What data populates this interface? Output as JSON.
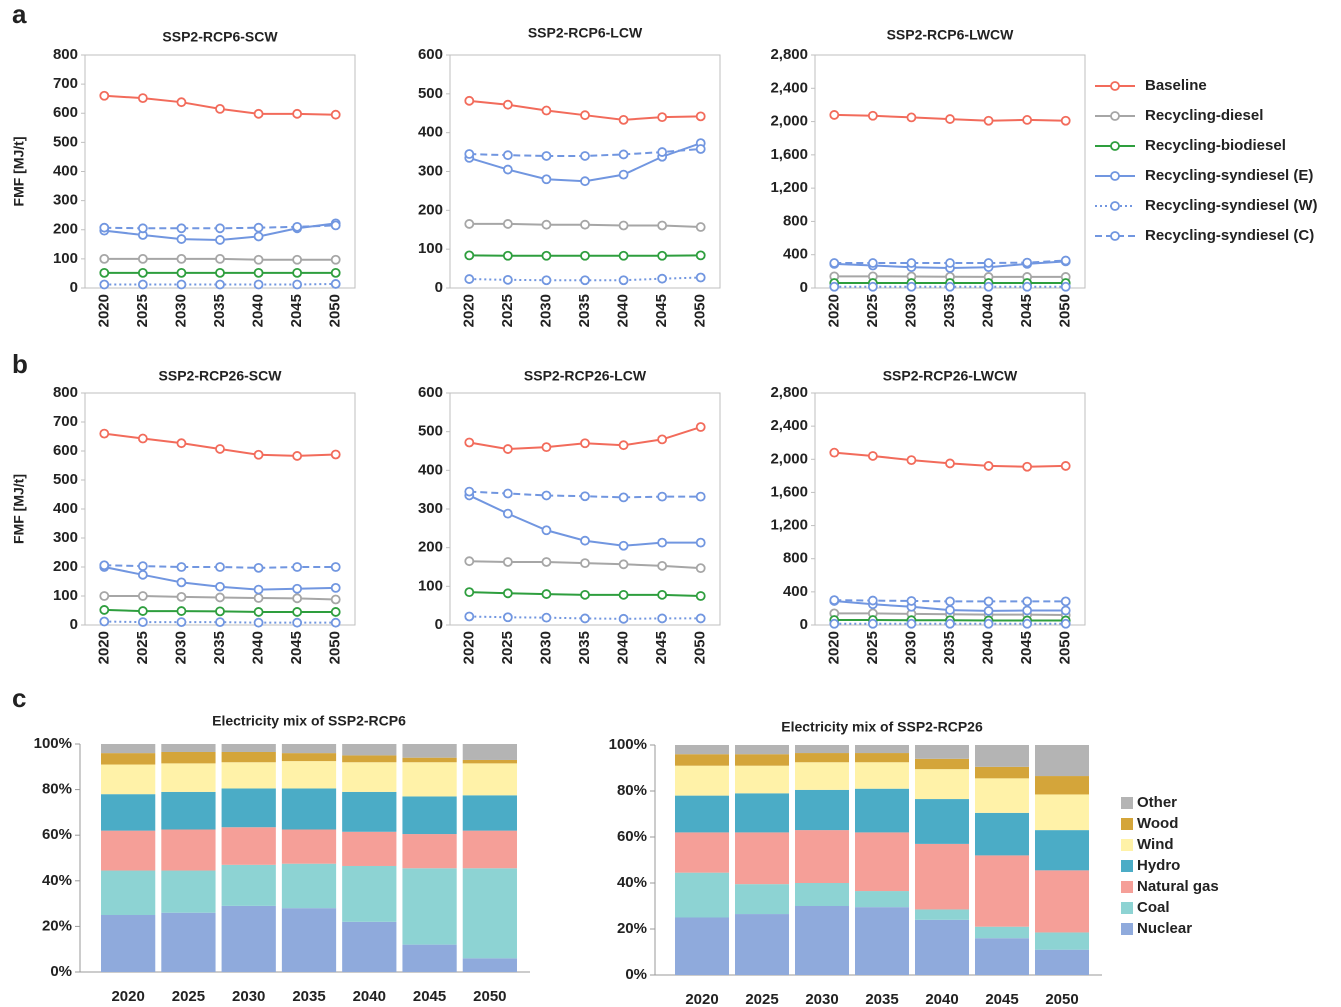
{
  "panel_labels": [
    "a",
    "b",
    "c"
  ],
  "chart_data": [
    {
      "type": "line",
      "title": "SSP2-RCP6-SCW",
      "ylabel": "FMF [MJ/t]",
      "categories": [
        "2020",
        "2025",
        "2030",
        "2035",
        "2040",
        "2045",
        "2050"
      ],
      "ylim": [
        0,
        800
      ],
      "yticks": [
        0,
        100,
        200,
        300,
        400,
        500,
        600,
        700,
        800
      ],
      "grid": false,
      "frame": true,
      "series": [
        {
          "name": "Baseline",
          "color": "#f26b5b",
          "style": "solid",
          "values": [
            660,
            652,
            638,
            615,
            598,
            598,
            595
          ]
        },
        {
          "name": "Recycling-diesel",
          "color": "#a6a6a6",
          "style": "solid",
          "values": [
            100,
            100,
            100,
            100,
            97,
            97,
            97
          ]
        },
        {
          "name": "Recycling-biodiesel",
          "color": "#2e9e3e",
          "style": "solid",
          "values": [
            52,
            52,
            52,
            52,
            52,
            52,
            52
          ]
        },
        {
          "name": "Recycling-syndiesel (E)",
          "color": "#7196e0",
          "style": "solid",
          "values": [
            197,
            182,
            168,
            165,
            177,
            205,
            222
          ]
        },
        {
          "name": "Recycling-syndiesel (W)",
          "color": "#7196e0",
          "style": "dotted",
          "values": [
            12,
            12,
            12,
            12,
            12,
            12,
            14
          ]
        },
        {
          "name": "Recycling-syndiesel (C)",
          "color": "#7196e0",
          "style": "dashed",
          "values": [
            207,
            205,
            205,
            205,
            207,
            210,
            215
          ]
        }
      ]
    },
    {
      "type": "line",
      "title": "SSP2-RCP6-LCW",
      "categories": [
        "2020",
        "2025",
        "2030",
        "2035",
        "2040",
        "2045",
        "2050"
      ],
      "ylim": [
        0,
        600
      ],
      "yticks": [
        0,
        100,
        200,
        300,
        400,
        500,
        600
      ],
      "grid": false,
      "frame": true,
      "series": [
        {
          "name": "Baseline",
          "color": "#f26b5b",
          "style": "solid",
          "values": [
            482,
            472,
            457,
            445,
            433,
            440,
            442
          ]
        },
        {
          "name": "Recycling-diesel",
          "color": "#a6a6a6",
          "style": "solid",
          "values": [
            165,
            165,
            163,
            163,
            161,
            161,
            157
          ]
        },
        {
          "name": "Recycling-biodiesel",
          "color": "#2e9e3e",
          "style": "solid",
          "values": [
            84,
            83,
            83,
            83,
            83,
            83,
            84
          ]
        },
        {
          "name": "Recycling-syndiesel (E)",
          "color": "#7196e0",
          "style": "solid",
          "values": [
            335,
            305,
            280,
            275,
            292,
            338,
            373
          ]
        },
        {
          "name": "Recycling-syndiesel (W)",
          "color": "#7196e0",
          "style": "dotted",
          "values": [
            23,
            21,
            20,
            20,
            20,
            24,
            27
          ]
        },
        {
          "name": "Recycling-syndiesel (C)",
          "color": "#7196e0",
          "style": "dashed",
          "values": [
            345,
            342,
            340,
            340,
            344,
            350,
            358
          ]
        }
      ]
    },
    {
      "type": "line",
      "title": "SSP2-RCP6-LWCW",
      "categories": [
        "2020",
        "2025",
        "2030",
        "2035",
        "2040",
        "2045",
        "2050"
      ],
      "ylim": [
        0,
        2800
      ],
      "yticks": [
        0,
        400,
        800,
        {
          "value": 1200,
          "label": "1,200"
        },
        {
          "value": 1600,
          "label": "1,600"
        },
        {
          "value": 2000,
          "label": "2,000"
        },
        {
          "value": 2400,
          "label": "2,400"
        },
        {
          "value": 2800,
          "label": "2,800"
        }
      ],
      "grid": false,
      "frame": true,
      "series": [
        {
          "name": "Baseline",
          "color": "#f26b5b",
          "style": "solid",
          "values": [
            2080,
            2070,
            2050,
            2030,
            2010,
            2020,
            2010
          ]
        },
        {
          "name": "Recycling-diesel",
          "color": "#a6a6a6",
          "style": "solid",
          "values": [
            140,
            140,
            138,
            135,
            133,
            133,
            133
          ]
        },
        {
          "name": "Recycling-biodiesel",
          "color": "#2e9e3e",
          "style": "solid",
          "values": [
            60,
            60,
            60,
            60,
            60,
            60,
            60
          ]
        },
        {
          "name": "Recycling-syndiesel (E)",
          "color": "#7196e0",
          "style": "solid",
          "values": [
            290,
            270,
            250,
            240,
            250,
            290,
            320
          ]
        },
        {
          "name": "Recycling-syndiesel (W)",
          "color": "#7196e0",
          "style": "dotted",
          "values": [
            15,
            15,
            15,
            15,
            15,
            15,
            15
          ]
        },
        {
          "name": "Recycling-syndiesel (C)",
          "color": "#7196e0",
          "style": "dashed",
          "values": [
            300,
            300,
            300,
            300,
            300,
            305,
            330
          ]
        }
      ]
    },
    {
      "type": "line",
      "title": "SSP2-RCP26-SCW",
      "ylabel": "FMF [MJ/t]",
      "categories": [
        "2020",
        "2025",
        "2030",
        "2035",
        "2040",
        "2045",
        "2050"
      ],
      "ylim": [
        0,
        800
      ],
      "yticks": [
        0,
        100,
        200,
        300,
        400,
        500,
        600,
        700,
        800
      ],
      "grid": false,
      "frame": true,
      "series": [
        {
          "name": "Baseline",
          "color": "#f26b5b",
          "style": "solid",
          "values": [
            660,
            643,
            627,
            607,
            587,
            583,
            588
          ]
        },
        {
          "name": "Recycling-diesel",
          "color": "#a6a6a6",
          "style": "solid",
          "values": [
            100,
            100,
            97,
            95,
            93,
            92,
            88
          ]
        },
        {
          "name": "Recycling-biodiesel",
          "color": "#2e9e3e",
          "style": "solid",
          "values": [
            52,
            48,
            48,
            47,
            45,
            45,
            45
          ]
        },
        {
          "name": "Recycling-syndiesel (E)",
          "color": "#7196e0",
          "style": "solid",
          "values": [
            200,
            173,
            147,
            132,
            122,
            125,
            128
          ]
        },
        {
          "name": "Recycling-syndiesel (W)",
          "color": "#7196e0",
          "style": "dotted",
          "values": [
            12,
            10,
            10,
            10,
            8,
            8,
            8
          ]
        },
        {
          "name": "Recycling-syndiesel (C)",
          "color": "#7196e0",
          "style": "dashed",
          "values": [
            206,
            203,
            200,
            200,
            197,
            200,
            200
          ]
        }
      ]
    },
    {
      "type": "line",
      "title": "SSP2-RCP26-LCW",
      "categories": [
        "2020",
        "2025",
        "2030",
        "2035",
        "2040",
        "2045",
        "2050"
      ],
      "ylim": [
        0,
        600
      ],
      "yticks": [
        0,
        100,
        200,
        300,
        400,
        500,
        600
      ],
      "grid": false,
      "frame": true,
      "series": [
        {
          "name": "Baseline",
          "color": "#f26b5b",
          "style": "solid",
          "values": [
            472,
            455,
            460,
            470,
            465,
            480,
            512
          ]
        },
        {
          "name": "Recycling-diesel",
          "color": "#a6a6a6",
          "style": "solid",
          "values": [
            165,
            163,
            163,
            160,
            157,
            153,
            147
          ]
        },
        {
          "name": "Recycling-biodiesel",
          "color": "#2e9e3e",
          "style": "solid",
          "values": [
            85,
            82,
            80,
            78,
            78,
            78,
            75
          ]
        },
        {
          "name": "Recycling-syndiesel (E)",
          "color": "#7196e0",
          "style": "solid",
          "values": [
            335,
            288,
            245,
            218,
            205,
            213,
            213
          ]
        },
        {
          "name": "Recycling-syndiesel (W)",
          "color": "#7196e0",
          "style": "dotted",
          "values": [
            22,
            20,
            19,
            17,
            16,
            17,
            17
          ]
        },
        {
          "name": "Recycling-syndiesel (C)",
          "color": "#7196e0",
          "style": "dashed",
          "values": [
            345,
            340,
            335,
            333,
            330,
            332,
            332
          ]
        }
      ]
    },
    {
      "type": "line",
      "title": "SSP2-RCP26-LWCW",
      "categories": [
        "2020",
        "2025",
        "2030",
        "2035",
        "2040",
        "2045",
        "2050"
      ],
      "ylim": [
        0,
        2800
      ],
      "yticks": [
        0,
        400,
        800,
        {
          "value": 1200,
          "label": "1,200"
        },
        {
          "value": 1600,
          "label": "1,600"
        },
        {
          "value": 2000,
          "label": "2,000"
        },
        {
          "value": 2400,
          "label": "2,400"
        },
        {
          "value": 2800,
          "label": "2,800"
        }
      ],
      "grid": false,
      "frame": true,
      "series": [
        {
          "name": "Baseline",
          "color": "#f26b5b",
          "style": "solid",
          "values": [
            2080,
            2040,
            1990,
            1950,
            1920,
            1910,
            1920
          ]
        },
        {
          "name": "Recycling-diesel",
          "color": "#a6a6a6",
          "style": "solid",
          "values": [
            140,
            140,
            135,
            130,
            125,
            125,
            120
          ]
        },
        {
          "name": "Recycling-biodiesel",
          "color": "#2e9e3e",
          "style": "solid",
          "values": [
            60,
            60,
            58,
            57,
            55,
            55,
            55
          ]
        },
        {
          "name": "Recycling-syndiesel (E)",
          "color": "#7196e0",
          "style": "solid",
          "values": [
            290,
            250,
            220,
            180,
            170,
            175,
            175
          ]
        },
        {
          "name": "Recycling-syndiesel (W)",
          "color": "#7196e0",
          "style": "dotted",
          "values": [
            15,
            15,
            15,
            15,
            15,
            15,
            15
          ]
        },
        {
          "name": "Recycling-syndiesel (C)",
          "color": "#7196e0",
          "style": "dashed",
          "values": [
            300,
            295,
            290,
            285,
            285,
            285,
            285
          ]
        }
      ]
    },
    {
      "type": "stacked_bar",
      "title": "Electricity mix of SSP2-RCP6",
      "categories": [
        "2020",
        "2025",
        "2030",
        "2035",
        "2040",
        "2045",
        "2050"
      ],
      "ylim": [
        0,
        100
      ],
      "yticks": [
        {
          "value": 0,
          "label": "0%"
        },
        {
          "value": 20,
          "label": "20%"
        },
        {
          "value": 40,
          "label": "40%"
        },
        {
          "value": 60,
          "label": "60%"
        },
        {
          "value": 80,
          "label": "80%"
        },
        {
          "value": 100,
          "label": "100%"
        }
      ],
      "grid": false,
      "series": [
        {
          "name": "Nuclear",
          "color": "#8faadc",
          "values": [
            25,
            26,
            29,
            28,
            22,
            12,
            6
          ]
        },
        {
          "name": "Coal",
          "color": "#8dd3d3",
          "values": [
            19.5,
            18.5,
            18,
            19.5,
            24.5,
            33.5,
            39.5
          ]
        },
        {
          "name": "Natural gas",
          "color": "#f59f98",
          "values": [
            17.5,
            18,
            16.5,
            15,
            15,
            15,
            16.5
          ]
        },
        {
          "name": "Hydro",
          "color": "#4bacc6",
          "values": [
            16,
            16.5,
            17,
            18,
            17.5,
            16.5,
            15.5
          ]
        },
        {
          "name": "Wind",
          "color": "#fff2a8",
          "values": [
            13,
            12.5,
            11.5,
            12,
            13,
            15,
            14
          ]
        },
        {
          "name": "Wood",
          "color": "#d4a53a",
          "values": [
            5,
            5,
            4.5,
            3.5,
            3,
            2,
            1.5
          ]
        },
        {
          "name": "Other",
          "color": "#b4b4b4",
          "values": [
            4,
            3.5,
            3.5,
            4,
            5,
            6,
            7
          ]
        }
      ]
    },
    {
      "type": "stacked_bar",
      "title": "Electricity mix of SSP2-RCP26",
      "categories": [
        "2020",
        "2025",
        "2030",
        "2035",
        "2040",
        "2045",
        "2050"
      ],
      "ylim": [
        0,
        100
      ],
      "yticks": [
        {
          "value": 0,
          "label": "0%"
        },
        {
          "value": 20,
          "label": "20%"
        },
        {
          "value": 40,
          "label": "40%"
        },
        {
          "value": 60,
          "label": "60%"
        },
        {
          "value": 80,
          "label": "80%"
        },
        {
          "value": 100,
          "label": "100%"
        }
      ],
      "grid": false,
      "series": [
        {
          "name": "Nuclear",
          "color": "#8faadc",
          "values": [
            25,
            26.5,
            30,
            29.5,
            24,
            16,
            11
          ]
        },
        {
          "name": "Coal",
          "color": "#8dd3d3",
          "values": [
            19.5,
            13,
            10,
            7,
            4.5,
            5,
            7.5
          ]
        },
        {
          "name": "Natural gas",
          "color": "#f59f98",
          "values": [
            17.5,
            22.5,
            23,
            25.5,
            28.5,
            31,
            27
          ]
        },
        {
          "name": "Hydro",
          "color": "#4bacc6",
          "values": [
            16,
            17,
            17.5,
            19,
            19.5,
            18.5,
            17.5
          ]
        },
        {
          "name": "Wind",
          "color": "#fff2a8",
          "values": [
            13,
            12,
            12,
            11.5,
            13,
            15,
            15.5
          ]
        },
        {
          "name": "Wood",
          "color": "#d4a53a",
          "values": [
            5,
            5,
            4,
            4,
            4.5,
            5,
            8
          ]
        },
        {
          "name": "Other",
          "color": "#b4b4b4",
          "values": [
            4,
            4,
            3.5,
            3.5,
            6,
            9.5,
            13.5
          ]
        }
      ]
    }
  ]
}
